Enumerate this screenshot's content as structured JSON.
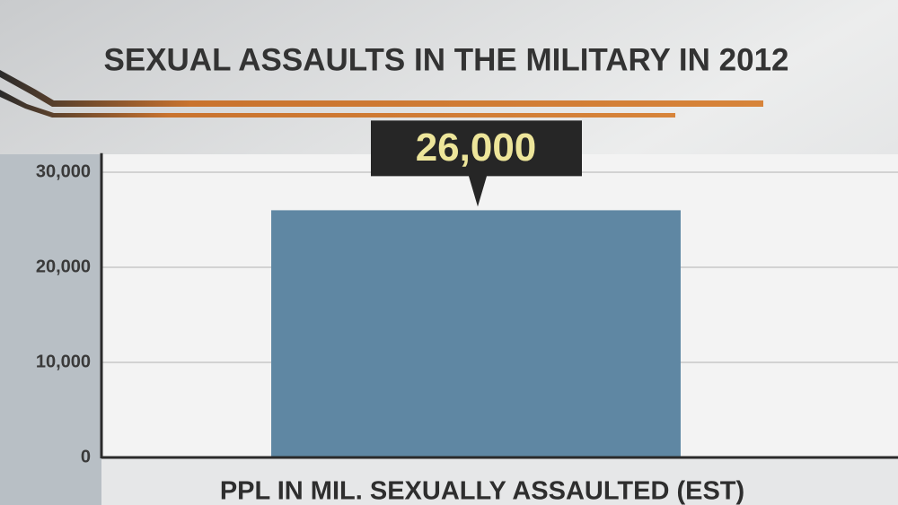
{
  "chart_data": {
    "type": "bar",
    "title": "SEXUAL ASSAULTS IN THE MILITARY IN 2012",
    "categories": [
      "PPL IN MIL. SEXUALLY ASSAULTED (EST)"
    ],
    "values": [
      26000
    ],
    "value_labels": [
      "26,000"
    ],
    "color": "#5f87a3",
    "ylim": [
      0,
      32000
    ],
    "yticks": [
      0,
      {
        "value": 10000,
        "label": "10,000"
      },
      {
        "value": 20000,
        "label": "20,000"
      },
      {
        "value": 30000,
        "label": "30,000"
      }
    ],
    "grid": true
  }
}
